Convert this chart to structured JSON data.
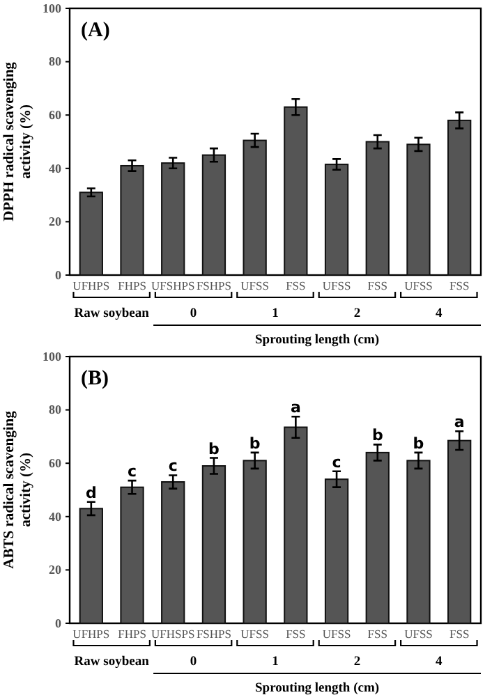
{
  "chart_data": [
    {
      "type": "bar",
      "title": "(A)",
      "ylabel": "DPPH radical scavenging activity (%)",
      "categories": [
        "UFHPS",
        "FHPS",
        "UFSHPS",
        "FSHPS",
        "UFSS",
        "FSS",
        "UFSS",
        "FSS",
        "UFSS",
        "FSS"
      ],
      "values": [
        31,
        41,
        42,
        45,
        50.5,
        63,
        41.5,
        50,
        49,
        58
      ],
      "errors": [
        1.5,
        2,
        2,
        2.5,
        2.5,
        3,
        2,
        2.5,
        2.5,
        3
      ],
      "color": "#555555",
      "ylim": [
        0,
        100
      ],
      "yticks": [
        0,
        20,
        40,
        60,
        80,
        100
      ],
      "annotations": [
        "Raw soybean",
        "0",
        "1",
        "2",
        "4",
        "Sprouting length (cm)"
      ]
    },
    {
      "type": "bar",
      "title": "(B)",
      "ylabel": "ABTS radical scavenging activity (%)",
      "categories": [
        "UFHPS",
        "FHPS",
        "UFHSPS",
        "FSHPS",
        "UFSS",
        "FSS",
        "UFSS",
        "FSS",
        "UFSS",
        "FSS"
      ],
      "values": [
        43,
        51,
        53,
        59,
        61,
        73.5,
        54,
        64,
        61,
        68.5
      ],
      "errors": [
        2.5,
        2.5,
        2.5,
        3,
        3,
        4,
        3,
        3,
        3,
        3.5
      ],
      "color": "#555555",
      "ylim": [
        0,
        100
      ],
      "yticks": [
        0,
        20,
        40,
        60,
        80,
        100
      ],
      "annotations": [
        "Raw soybean",
        "0",
        "1",
        "2",
        "4",
        "Sprouting length (cm)",
        {
          "text": "d",
          "y": 45.5
        },
        {
          "text": "c",
          "y": 53.5
        },
        {
          "text": "c",
          "y": 55.5
        },
        {
          "text": "b",
          "y": 62
        },
        {
          "text": "b",
          "y": 64
        },
        {
          "text": "a",
          "y": 77.5
        },
        {
          "text": "c",
          "y": 57
        },
        {
          "text": "b",
          "y": 67
        },
        {
          "text": "b",
          "y": 64
        },
        {
          "text": "a",
          "y": 72
        }
      ]
    }
  ]
}
